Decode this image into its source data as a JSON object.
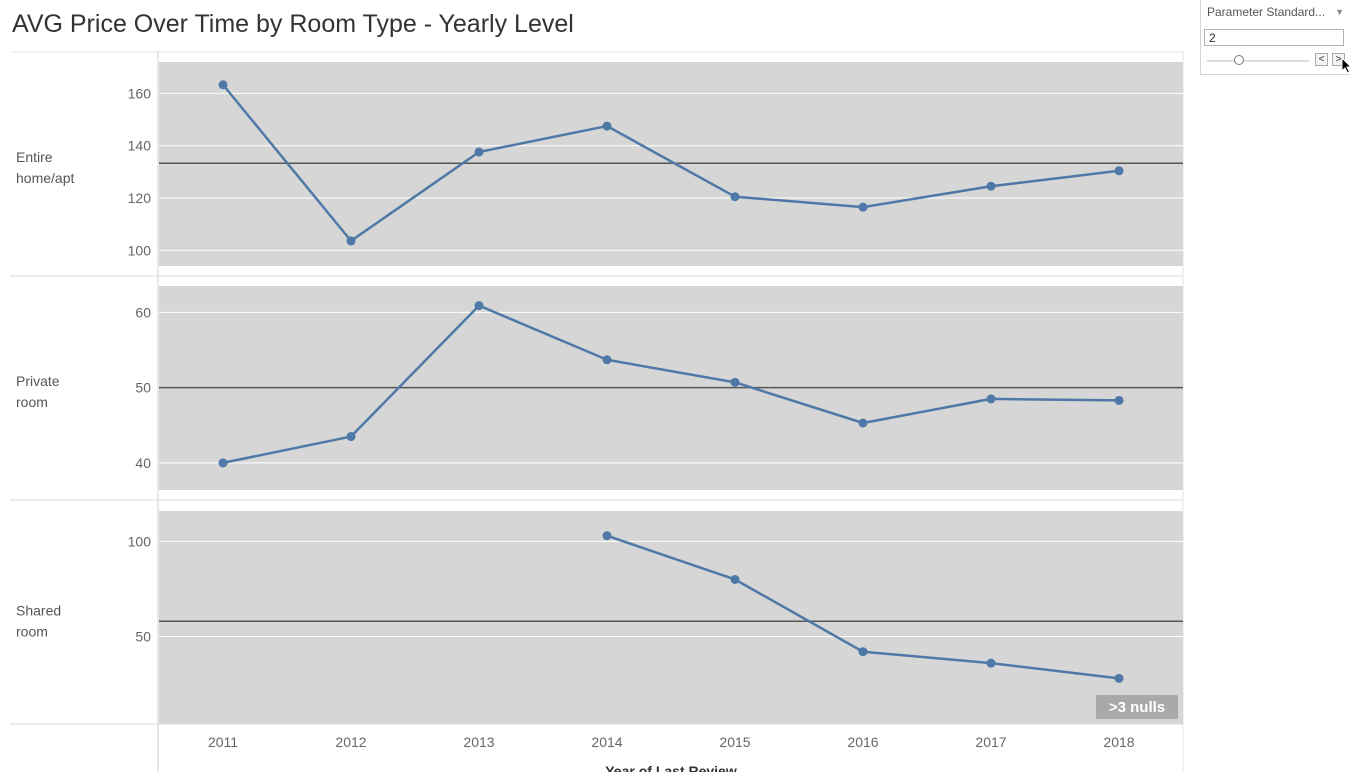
{
  "title": "AVG Price Over Time by Room Type - Yearly Level",
  "parameter": {
    "label": "Parameter Standard...",
    "value": "2",
    "prev_symbol": "<",
    "next_symbol": ">",
    "slider_fraction": 0.3
  },
  "chart_data": {
    "type": "line",
    "xlabel": "Year of Last Review",
    "x": [
      "2011",
      "2012",
      "2013",
      "2014",
      "2015",
      "2016",
      "2017",
      "2018"
    ],
    "null_indicator": ">3 nulls",
    "panels": [
      {
        "row_label": [
          "Entire",
          "home/apt"
        ],
        "yticks": [
          100,
          120,
          140,
          160
        ],
        "ylim": [
          94,
          172
        ],
        "reference_line": 133.3,
        "values": [
          163.3,
          103.6,
          137.6,
          147.5,
          120.5,
          116.5,
          124.5,
          130.4
        ]
      },
      {
        "row_label": [
          "Private",
          "room"
        ],
        "yticks": [
          40,
          50,
          60
        ],
        "ylim": [
          36.4,
          63.5
        ],
        "reference_line": 50,
        "values": [
          40,
          43.5,
          60.9,
          53.7,
          50.7,
          45.3,
          48.5,
          48.3
        ]
      },
      {
        "row_label": [
          "Shared",
          "room"
        ],
        "yticks": [
          50,
          100
        ],
        "ylim": [
          4,
          116
        ],
        "reference_line": 58,
        "values": [
          null,
          null,
          null,
          103,
          80,
          42,
          36,
          28
        ]
      }
    ],
    "colors": {
      "line": "#4e79a7",
      "pane_bg": "#d6d6d6",
      "ref_line": "#555555",
      "null_badge": "#a9a9a9"
    }
  }
}
